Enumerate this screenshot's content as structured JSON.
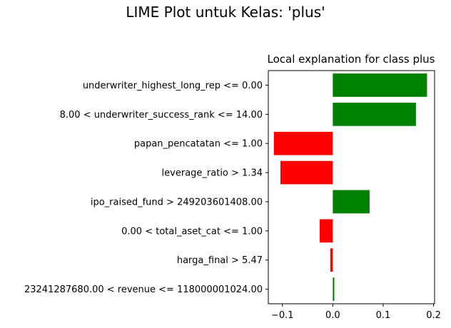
{
  "figure": {
    "suptitle": "LIME Plot untuk Kelas: 'plus'"
  },
  "chart_data": {
    "type": "bar",
    "orientation": "horizontal",
    "title": "Local explanation for class plus",
    "xlabel": "",
    "ylabel": "",
    "xlim": [
      -0.128,
      0.202
    ],
    "xticks": [
      -0.1,
      0.0,
      0.1,
      0.2
    ],
    "xtick_labels": [
      "−0.1",
      "0.0",
      "0.1",
      "0.2"
    ],
    "positive_color": "#008000",
    "negative_color": "#ff0000",
    "categories": [
      "underwriter_highest_long_rep <= 0.00",
      "8.00 < underwriter_success_rank <= 14.00",
      "papan_pencatatan <= 1.00",
      "leverage_ratio > 1.34",
      "ipo_raised_fund > 249203601408.00",
      "0.00 < total_aset_cat <= 1.00",
      "harga_final > 5.47",
      "23241287680.00 < revenue <= 118000001024.00"
    ],
    "values": [
      0.187,
      0.165,
      -0.117,
      -0.104,
      0.073,
      -0.026,
      -0.005,
      0.003
    ]
  }
}
